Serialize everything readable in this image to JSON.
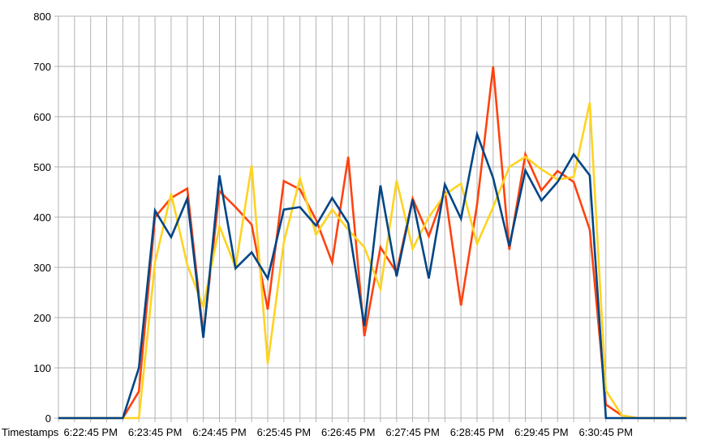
{
  "chart_data": {
    "type": "line",
    "xlabel": "Timestamps",
    "ylim": [
      0,
      800
    ],
    "y_ticks": [
      "0",
      "100",
      "200",
      "300",
      "400",
      "500",
      "600",
      "700",
      "800"
    ],
    "x_tick_labels": [
      "6:22:45 PM",
      "6:23:45 PM",
      "6:24:45 PM",
      "6:25:45 PM",
      "6:26:45 PM",
      "6:27:45 PM",
      "6:28:45 PM",
      "6:29:45 PM",
      "6:30:45 PM"
    ],
    "grid": true,
    "colors": [
      "#ff420e",
      "#ffd320",
      "#004586"
    ],
    "x": [
      "6:22:15 PM",
      "6:22:30 PM",
      "6:22:45 PM",
      "6:23:00 PM",
      "6:23:15 PM",
      "6:23:30 PM",
      "6:23:45 PM",
      "6:24:00 PM",
      "6:24:15 PM",
      "6:24:30 PM",
      "6:24:45 PM",
      "6:25:00 PM",
      "6:25:15 PM",
      "6:25:30 PM",
      "6:25:45 PM",
      "6:26:00 PM",
      "6:26:15 PM",
      "6:26:30 PM",
      "6:26:45 PM",
      "6:27:00 PM",
      "6:27:15 PM",
      "6:27:30 PM",
      "6:27:45 PM",
      "6:28:00 PM",
      "6:28:15 PM",
      "6:28:30 PM",
      "6:28:45 PM",
      "6:29:00 PM",
      "6:29:15 PM",
      "6:29:30 PM",
      "6:29:45 PM",
      "6:30:00 PM",
      "6:30:15 PM",
      "6:30:30 PM",
      "6:30:45 PM",
      "6:31:00 PM",
      "6:31:15 PM",
      "6:31:30 PM",
      "6:31:45 PM",
      "6:32:00 PM"
    ],
    "series": [
      {
        "values": [
          0,
          0,
          0,
          0,
          0,
          53,
          400,
          438,
          457,
          165,
          452,
          420,
          385,
          216,
          472,
          455,
          395,
          310,
          520,
          163,
          340,
          290,
          437,
          362,
          452,
          224,
          425,
          700,
          335,
          525,
          453,
          492,
          470,
          375,
          27,
          5,
          0,
          0,
          0,
          0
        ]
      },
      {
        "values": [
          0,
          0,
          0,
          0,
          0,
          0,
          310,
          447,
          305,
          222,
          382,
          300,
          503,
          108,
          350,
          477,
          365,
          415,
          375,
          340,
          257,
          473,
          337,
          400,
          445,
          467,
          347,
          420,
          500,
          520,
          495,
          475,
          480,
          628,
          55,
          5,
          0,
          0,
          0,
          0
        ]
      },
      {
        "values": [
          0,
          0,
          0,
          0,
          0,
          100,
          413,
          360,
          437,
          160,
          483,
          298,
          330,
          278,
          415,
          420,
          383,
          438,
          388,
          183,
          463,
          282,
          435,
          278,
          465,
          397,
          565,
          478,
          342,
          493,
          433,
          470,
          525,
          483,
          0,
          0,
          0,
          0,
          0,
          0
        ]
      }
    ]
  }
}
